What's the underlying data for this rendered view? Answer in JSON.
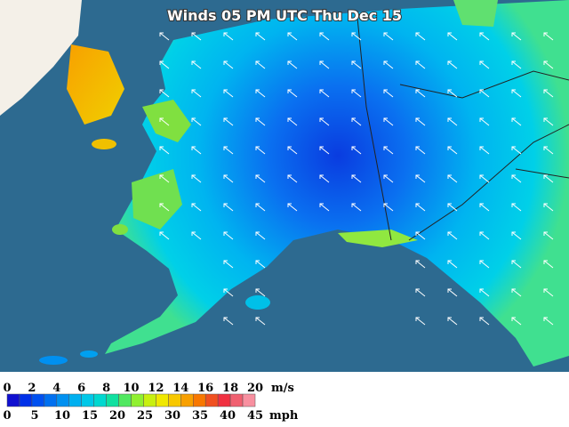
{
  "title": "Winds 05 PM UTC Thu Dec 15",
  "legend": {
    "colors": [
      "#1010d0",
      "#0030e8",
      "#0050f0",
      "#0070f0",
      "#0090f0",
      "#00b0f0",
      "#00c8e8",
      "#00d8d0",
      "#10e0a0",
      "#50e860",
      "#90f030",
      "#c8f010",
      "#f0e800",
      "#f8c800",
      "#f8a000",
      "#f87800",
      "#f05020",
      "#f03040",
      "#f06070",
      "#f890a0"
    ],
    "ms_ticks": [
      0,
      2,
      4,
      6,
      8,
      10,
      12,
      14,
      16,
      18,
      20
    ],
    "ms_unit": "m/s",
    "mph_ticks": [
      0,
      5,
      10,
      15,
      20,
      25,
      30,
      35,
      40,
      45
    ],
    "mph_unit": "mph"
  }
}
